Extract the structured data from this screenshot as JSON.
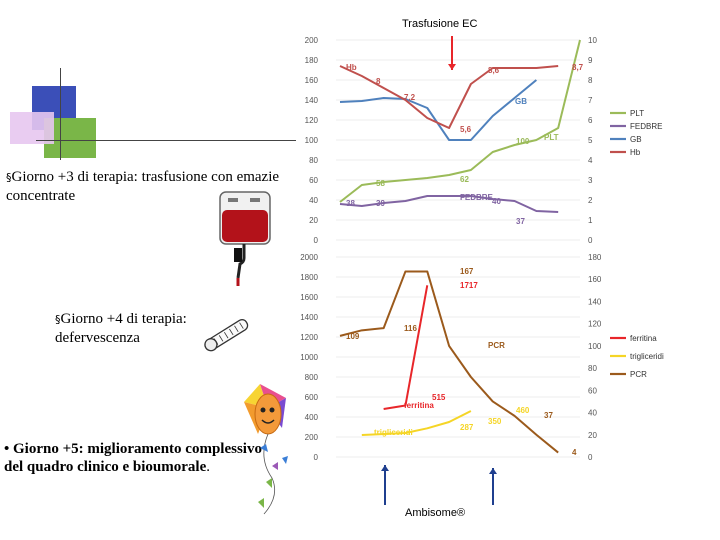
{
  "slide": {
    "bullets": [
      {
        "marker": "§",
        "text": "Giorno +3  di terapia:  trasfusione con emazie concentrate"
      },
      {
        "marker": "§",
        "text": "Giorno +4 di terapia: defervescenza"
      },
      {
        "marker": "•",
        "text": " Giorno +5:  miglioramento complessivo del quadro clinico e bioumorale",
        "suffix": "."
      }
    ],
    "annotations": {
      "top": "Trasfusione EC",
      "bottom": "Ambisome®"
    },
    "colors": {
      "plt": "#9bbb59",
      "fegbre": "#8064a2",
      "gb": "#4f81bd",
      "hb": "#c0504d",
      "ferritina": "#e8262a",
      "trigliceridi": "#f5d526",
      "pcr": "#9b5a1c",
      "arrow_red": "#e8262a",
      "arrow_blue": "#1f3f8f",
      "deco_blue": "#3b4fb8",
      "deco_green": "#7ab648",
      "deco_lilac": "#d9b3e6"
    },
    "icons": [
      "blood-bag-icon",
      "thermometer-icon",
      "kite-icon"
    ]
  },
  "chart_data": [
    {
      "type": "line",
      "title": "",
      "x": [
        0,
        1,
        2,
        3,
        4,
        5,
        6,
        7,
        8,
        9,
        10,
        11
      ],
      "y_left_ticks": [
        "0",
        "20",
        "40",
        "60",
        "80",
        "100",
        "120",
        "140",
        "160",
        "180",
        "200"
      ],
      "y_left_range": [
        0,
        200
      ],
      "y_right_ticks": [
        "0",
        "1",
        "2",
        "3",
        "4",
        "5",
        "6",
        "7",
        "8",
        "9",
        "10"
      ],
      "y_right_range": [
        0,
        10
      ],
      "series": [
        {
          "name": "PLT",
          "axis": "left",
          "color_key": "plt",
          "values": [
            38,
            55,
            58,
            60,
            62,
            65,
            70,
            88,
            95,
            100,
            112,
            200
          ]
        },
        {
          "name": "FEDBRE",
          "axis": "right",
          "color_key": "fegbre",
          "values": [
            1.8,
            1.7,
            1.85,
            1.95,
            2.2,
            2.2,
            2.2,
            2.05,
            1.95,
            1.45,
            1.4,
            null
          ],
          "data_x": [
            0,
            1,
            2,
            3,
            4,
            5,
            6,
            7,
            8,
            9,
            10
          ]
        },
        {
          "name": "GB",
          "axis": "right",
          "color_key": "gb",
          "values": [
            6.9,
            6.95,
            7.1,
            7.05,
            6.6,
            5.0,
            5.0,
            6.2,
            7.1,
            8.0,
            null,
            null
          ],
          "data_x": [
            0,
            1,
            2,
            3,
            4,
            5,
            6,
            7,
            8,
            9
          ]
        },
        {
          "name": "Hb",
          "axis": "right",
          "color_key": "hb",
          "values": [
            8.7,
            8.2,
            7.6,
            7.0,
            6.1,
            5.6,
            7.8,
            8.6,
            8.6,
            8.6,
            8.7,
            null
          ],
          "data_x": [
            0,
            1,
            2,
            3,
            4,
            5,
            6,
            7,
            8,
            9,
            10
          ]
        }
      ],
      "legend": [
        "PLT",
        "FEDBRE",
        "GB",
        "Hb"
      ],
      "legend_position": "right",
      "data_labels": [
        {
          "series": "Hb",
          "text": "Hb"
        },
        {
          "series": "Hb",
          "text": "8"
        },
        {
          "series": "Hb",
          "text": "7,2"
        },
        {
          "series": "Hb",
          "text": "5,6"
        },
        {
          "series": "Hb",
          "text": "8,6"
        },
        {
          "series": "Hb",
          "text": "8,7"
        },
        {
          "series": "GB",
          "text": "GB"
        },
        {
          "series": "PLT",
          "text": "PLT"
        },
        {
          "series": "PLT",
          "text": "100"
        },
        {
          "series": "PLT",
          "text": "58"
        },
        {
          "series": "PLT",
          "text": "62"
        },
        {
          "series": "FEDBRE",
          "text": "38"
        },
        {
          "series": "FEDBRE",
          "text": "39"
        },
        {
          "series": "FEDBRE",
          "text": "FEDBRE"
        },
        {
          "series": "FEDBRE",
          "text": "40"
        },
        {
          "series": "FEDBRE",
          "text": "37"
        }
      ]
    },
    {
      "type": "line",
      "title": "",
      "x": [
        0,
        1,
        2,
        3,
        4,
        5,
        6,
        7,
        8,
        9,
        10,
        11
      ],
      "y_left_ticks": [
        "0",
        "200",
        "400",
        "600",
        "800",
        "1000",
        "1200",
        "1400",
        "1600",
        "1800",
        "2000"
      ],
      "y_left_range": [
        0,
        2000
      ],
      "y_right_ticks": [
        "0",
        "20",
        "40",
        "60",
        "80",
        "100",
        "120",
        "140",
        "160",
        "180"
      ],
      "y_right_range": [
        0,
        180
      ],
      "series": [
        {
          "name": "ferritina",
          "axis": "left",
          "color_key": "ferritina",
          "values": [
            null,
            null,
            480,
            515,
            1717,
            null,
            null,
            null,
            null,
            null,
            null,
            null
          ],
          "data_x": [
            2,
            3,
            4
          ]
        },
        {
          "name": "trigliceridi",
          "axis": "left",
          "color_key": "trigliceridi",
          "values": [
            null,
            220,
            230,
            240,
            287,
            350,
            460,
            null,
            null,
            null,
            null,
            null
          ],
          "data_x": [
            1,
            2,
            3,
            4,
            5,
            6
          ]
        },
        {
          "name": "PCR",
          "axis": "right",
          "color_key": "pcr",
          "values": [
            109,
            114,
            116,
            167,
            167,
            100,
            72,
            50,
            37,
            20,
            4,
            null
          ],
          "data_x": [
            0,
            1,
            2,
            3,
            4,
            5,
            6,
            7,
            8,
            9,
            10
          ]
        }
      ],
      "legend": [
        "ferritina",
        "trigliceridi",
        "PCR"
      ],
      "legend_position": "right",
      "data_labels": [
        {
          "series": "PCR",
          "text": "109"
        },
        {
          "series": "PCR",
          "text": "116"
        },
        {
          "series": "PCR",
          "text": "167"
        },
        {
          "series": "ferritina",
          "text": "1717"
        },
        {
          "series": "PCR",
          "text": "PCR"
        },
        {
          "series": "ferritina",
          "text": "515"
        },
        {
          "series": "ferritina",
          "text": "ferritina"
        },
        {
          "series": "trigliceridi",
          "text": "trigliceridi"
        },
        {
          "series": "trigliceridi",
          "text": "287"
        },
        {
          "series": "trigliceridi",
          "text": "350"
        },
        {
          "series": "trigliceridi",
          "text": "460"
        },
        {
          "series": "PCR",
          "text": "37"
        },
        {
          "series": "PCR",
          "text": "4"
        }
      ]
    }
  ]
}
